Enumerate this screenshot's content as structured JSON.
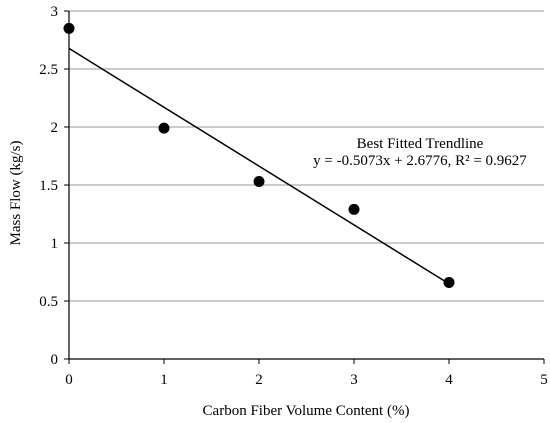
{
  "chart_data": {
    "type": "scatter",
    "title": "",
    "xlabel": "Carbon Fiber Volume Content (%)",
    "ylabel": "Mass Flow (kg/s)",
    "xlim": [
      0,
      5
    ],
    "ylim": [
      0,
      3
    ],
    "x_ticks": [
      "0",
      "1",
      "2",
      "3",
      "4",
      "5"
    ],
    "y_ticks": [
      "0",
      "0.5",
      "1",
      "1.5",
      "2",
      "2.5",
      "3"
    ],
    "grid": "horizontal",
    "series": [
      {
        "x": [
          0,
          1,
          2,
          3,
          4
        ],
        "y": [
          2.85,
          1.99,
          1.53,
          1.29,
          0.66
        ]
      }
    ],
    "trendline": {
      "slope": -0.5073,
      "intercept": 2.6776,
      "x_range": [
        0,
        4
      ]
    },
    "annotation": {
      "title": "Best Fitted Trendline",
      "equation": "y = -0.5073x + 2.6776, R² = 0.9627"
    }
  }
}
